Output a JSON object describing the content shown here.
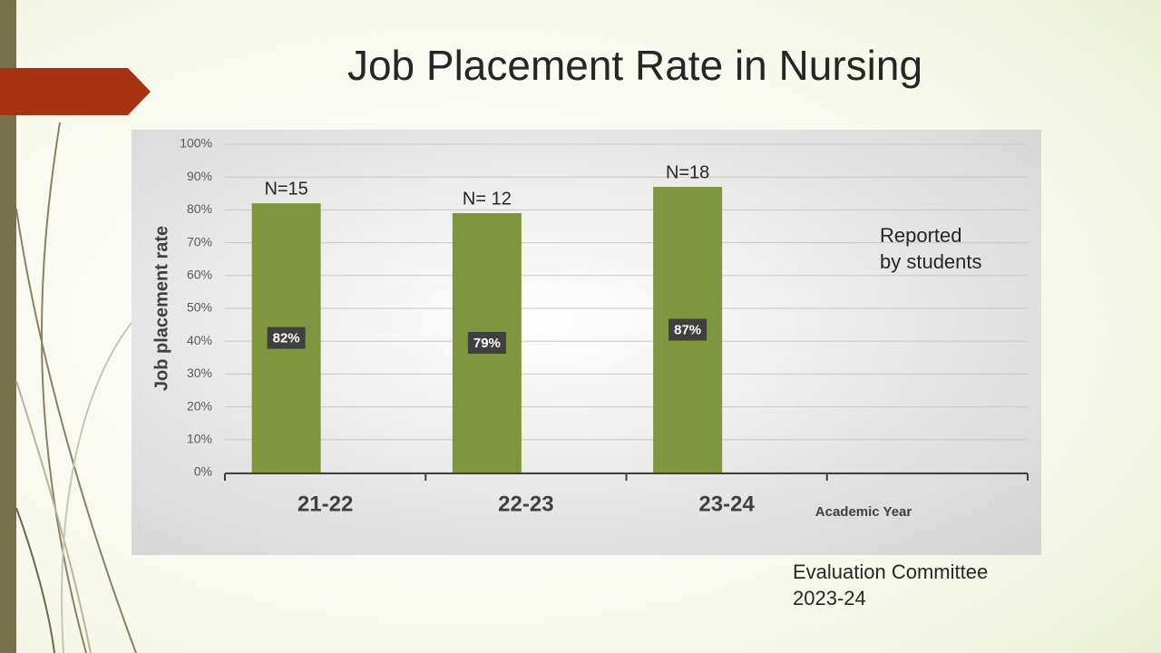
{
  "chart_data": {
    "type": "bar",
    "title": "Job Placement Rate in Nursing",
    "y_axis_label": "Job placement rate",
    "x_axis_label": "Academic Year",
    "categories": [
      "21-22",
      "22-23",
      "23-24",
      null
    ],
    "values": [
      82,
      79,
      87,
      null
    ],
    "value_labels": [
      "82%",
      "79%",
      "87%",
      null
    ],
    "n_labels": [
      "N=15",
      "N= 12",
      "N=18",
      null
    ],
    "color": "#7f963f",
    "ylim": [
      0,
      100
    ],
    "yticks": [
      {
        "value": 0,
        "label": "0%"
      },
      {
        "value": 10,
        "label": "10%"
      },
      {
        "value": 20,
        "label": "20%"
      },
      {
        "value": 30,
        "label": "30%"
      },
      {
        "value": 40,
        "label": "40%"
      },
      {
        "value": 50,
        "label": "50%"
      },
      {
        "value": 60,
        "label": "60%"
      },
      {
        "value": 70,
        "label": "70%"
      },
      {
        "value": 80,
        "label": "80%"
      },
      {
        "value": 90,
        "label": "90%"
      },
      {
        "value": 100,
        "label": "100%"
      }
    ],
    "grid": true,
    "note": [
      "Reported",
      "by students"
    ],
    "footer": [
      "Evaluation Committee",
      "2023-24"
    ]
  }
}
